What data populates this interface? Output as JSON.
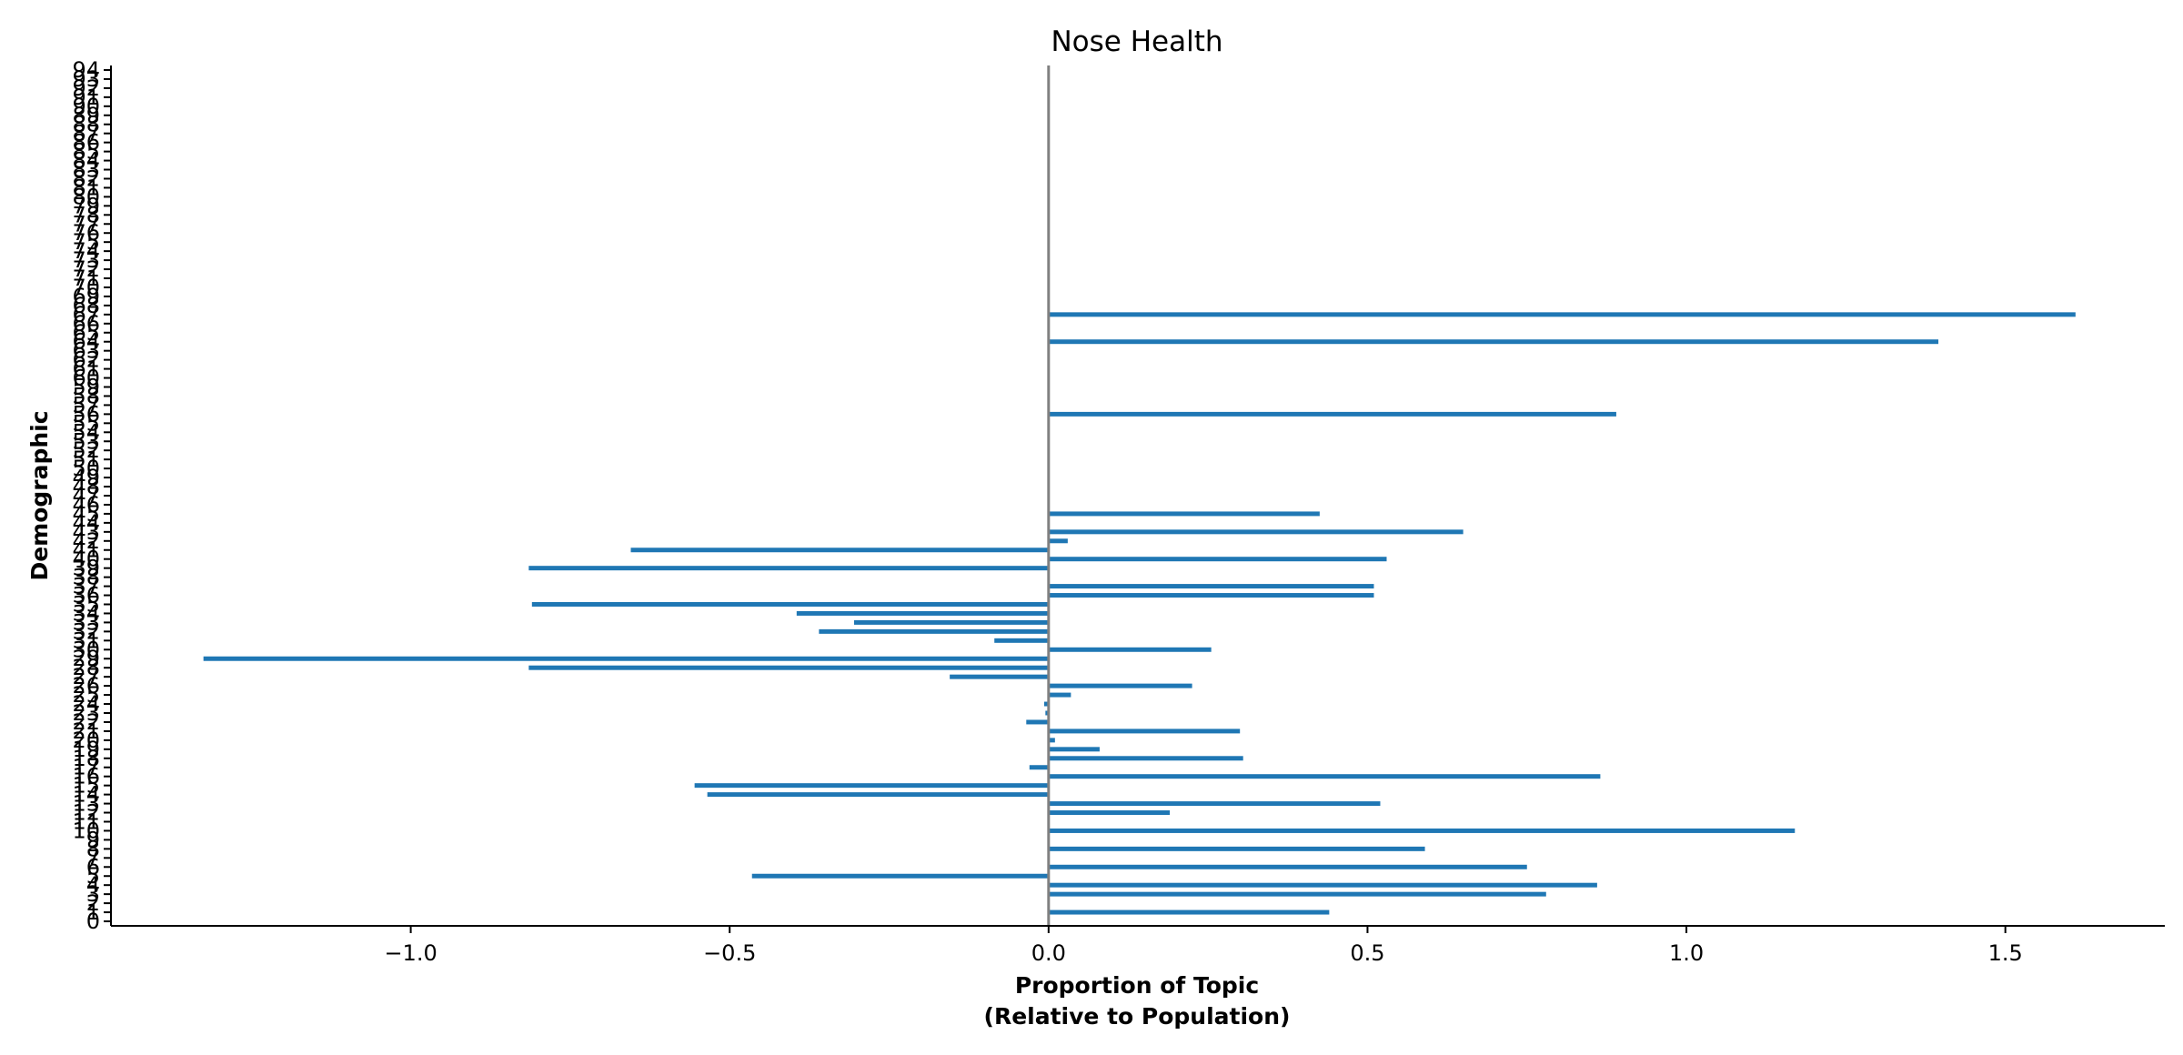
{
  "chart_data": {
    "type": "bar",
    "orientation": "horizontal",
    "title": "Nose Health",
    "xlabel_line1": "Proportion of Topic",
    "xlabel_line2": "(Relative to Population)",
    "ylabel": "Demographic",
    "xlim": [
      -1.47,
      1.75
    ],
    "ylim": [
      -0.5,
      94.5
    ],
    "xticks": [
      -1.0,
      -0.5,
      0.0,
      0.5,
      1.0,
      1.5
    ],
    "xtick_labels": [
      "−1.0",
      "−0.5",
      "0.0",
      "0.5",
      "1.0",
      "1.5"
    ],
    "bar_color": "#1f77b4",
    "zero_line_color": "#808080",
    "grid": false,
    "categories": [
      0,
      1,
      2,
      3,
      4,
      5,
      6,
      7,
      8,
      9,
      10,
      11,
      12,
      13,
      14,
      15,
      16,
      17,
      18,
      19,
      20,
      21,
      22,
      23,
      24,
      25,
      26,
      27,
      28,
      29,
      30,
      31,
      32,
      33,
      34,
      35,
      36,
      37,
      38,
      39,
      40,
      41,
      42,
      43,
      44,
      45,
      46,
      47,
      48,
      49,
      50,
      51,
      52,
      53,
      54,
      55,
      56,
      57,
      58,
      59,
      60,
      61,
      62,
      63,
      64,
      65,
      66,
      67,
      68,
      69,
      70,
      71,
      72,
      73,
      74,
      75,
      76,
      77,
      78,
      79,
      80,
      81,
      82,
      83,
      84,
      85,
      86,
      87,
      88,
      89,
      90,
      91,
      92,
      93,
      94
    ],
    "values": [
      0,
      0.44,
      0,
      0.78,
      0.86,
      -0.465,
      0.75,
      0,
      0.59,
      0,
      1.17,
      0,
      0.19,
      0.52,
      -0.535,
      -0.555,
      0.865,
      -0.03,
      0.305,
      0.08,
      0.01,
      0.3,
      -0.035,
      -0.005,
      -0.007,
      0.035,
      0.225,
      -0.155,
      -0.815,
      -1.325,
      0.255,
      -0.085,
      -0.36,
      -0.305,
      -0.395,
      -0.81,
      0.51,
      0.51,
      0,
      -0.815,
      0.53,
      -0.655,
      0.03,
      0.65,
      0,
      0.425,
      0,
      0,
      0,
      0,
      0,
      0,
      0,
      0,
      0,
      0,
      0.89,
      0,
      0,
      0,
      0,
      0,
      0,
      0,
      1.395,
      0,
      0,
      1.61,
      0,
      0,
      0,
      0,
      0,
      0,
      0,
      0,
      0,
      0,
      0,
      0,
      0,
      0,
      0,
      0,
      0,
      0,
      0,
      0,
      0,
      0,
      0,
      0,
      0,
      0,
      0
    ]
  }
}
